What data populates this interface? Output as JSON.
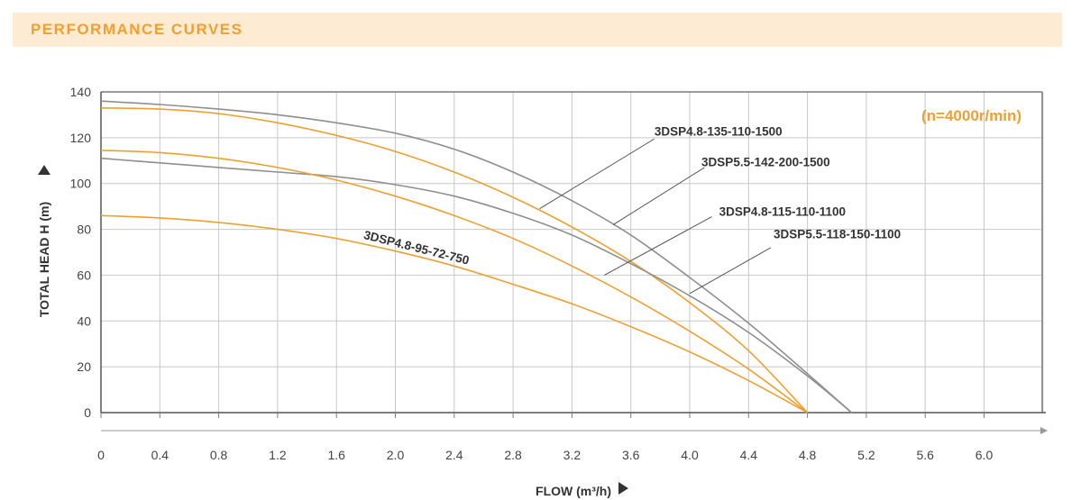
{
  "header": {
    "title": "PERFORMANCE CURVES"
  },
  "chart_data": {
    "type": "line",
    "title": "",
    "annotation": "(n=4000r/min)",
    "xlabel": "FLOW (m³/h)",
    "ylabel": "TOTAL HEAD H (m)",
    "xlim": [
      0,
      6.4
    ],
    "ylim": [
      0,
      140
    ],
    "xticks": [
      0,
      0.4,
      0.8,
      1.2,
      1.6,
      2.0,
      2.4,
      2.8,
      3.2,
      3.6,
      4.0,
      4.4,
      4.8,
      5.2,
      5.6,
      6.0
    ],
    "xtick_labels": [
      "0",
      "0.4",
      "0.8",
      "1.2",
      "1.6",
      "2.0",
      "2.4",
      "2.8",
      "3.2",
      "3.6",
      "4.0",
      "4.4",
      "4.8",
      "5.2",
      "5.6",
      "6.0"
    ],
    "yticks": [
      0,
      20,
      40,
      60,
      80,
      100,
      120,
      140
    ],
    "ytick_labels": [
      "0",
      "20",
      "40",
      "60",
      "80",
      "100",
      "120",
      "140"
    ],
    "grid": true,
    "series": [
      {
        "name": "3DSP5.5-142-200-1500",
        "color": "#8f8f8f",
        "x": [
          0,
          0.4,
          0.8,
          1.2,
          1.6,
          2.0,
          2.4,
          2.8,
          3.2,
          3.6,
          4.0,
          4.4,
          4.8,
          5.1
        ],
        "y": [
          136,
          134.5,
          132.5,
          130,
          126.5,
          122,
          115,
          105,
          92.5,
          77.5,
          59,
          39,
          17,
          0
        ]
      },
      {
        "name": "3DSP4.8-135-110-1500",
        "color": "#f0a030",
        "x": [
          0,
          0.4,
          0.8,
          1.2,
          1.6,
          2.0,
          2.4,
          2.8,
          3.2,
          3.6,
          4.0,
          4.4,
          4.8
        ],
        "y": [
          133,
          132.5,
          130.5,
          126.5,
          121,
          114,
          105,
          94,
          81,
          66,
          48,
          27,
          0
        ]
      },
      {
        "name": "3DSP5.5-118-150-1100",
        "color": "#8f8f8f",
        "x": [
          0,
          0.4,
          0.8,
          1.2,
          1.6,
          2.0,
          2.4,
          2.8,
          3.2,
          3.6,
          4.0,
          4.4,
          4.8,
          5.1
        ],
        "y": [
          111,
          109,
          107,
          105,
          103,
          99.5,
          94.5,
          87,
          77.5,
          65,
          51,
          35,
          16,
          0
        ]
      },
      {
        "name": "3DSP4.8-115-110-1100",
        "color": "#f0a030",
        "x": [
          0,
          0.4,
          0.8,
          1.2,
          1.6,
          2.0,
          2.4,
          2.8,
          3.2,
          3.6,
          4.0,
          4.4,
          4.8
        ],
        "y": [
          114.5,
          113.5,
          111,
          107,
          101.5,
          94.5,
          86,
          76,
          64,
          50.5,
          35.5,
          19,
          0
        ]
      },
      {
        "name": "3DSP4.8-95-72-750",
        "color": "#f0a030",
        "x": [
          0,
          0.4,
          0.8,
          1.2,
          1.6,
          2.0,
          2.4,
          2.8,
          3.2,
          3.6,
          4.0,
          4.4,
          4.8
        ],
        "y": [
          86,
          85,
          83,
          80,
          76,
          70.5,
          64,
          56,
          47.5,
          37.5,
          26.5,
          14,
          0
        ]
      }
    ],
    "callouts": [
      {
        "label": "3DSP4.8-135-110-1500",
        "leader_from": [
          2.98,
          89
        ],
        "leader_to": [
          3.76,
          119.5
        ],
        "text_at": [
          3.76,
          121
        ]
      },
      {
        "label": "3DSP5.5-142-200-1500",
        "leader_from": [
          3.48,
          82
        ],
        "leader_to": [
          4.1,
          107
        ],
        "text_at": [
          4.08,
          107.5
        ]
      },
      {
        "label": "3DSP4.8-115-110-1100",
        "leader_from": [
          3.42,
          60
        ],
        "leader_to": [
          4.15,
          85.5
        ],
        "text_at": [
          4.2,
          86
        ]
      },
      {
        "label": "3DSP5.5-118-150-1100",
        "leader_from": [
          4.0,
          52
        ],
        "leader_to": [
          4.55,
          72
        ],
        "text_at": [
          4.57,
          76
        ]
      },
      {
        "label": "3DSP4.8-95-72-750",
        "rotate": 14,
        "text_at": [
          1.78,
          76
        ]
      }
    ],
    "colors": {
      "grid": "#c8c8c8",
      "frame": "#7a7a7a",
      "orange": "#f0a030",
      "gray": "#8f8f8f"
    }
  }
}
